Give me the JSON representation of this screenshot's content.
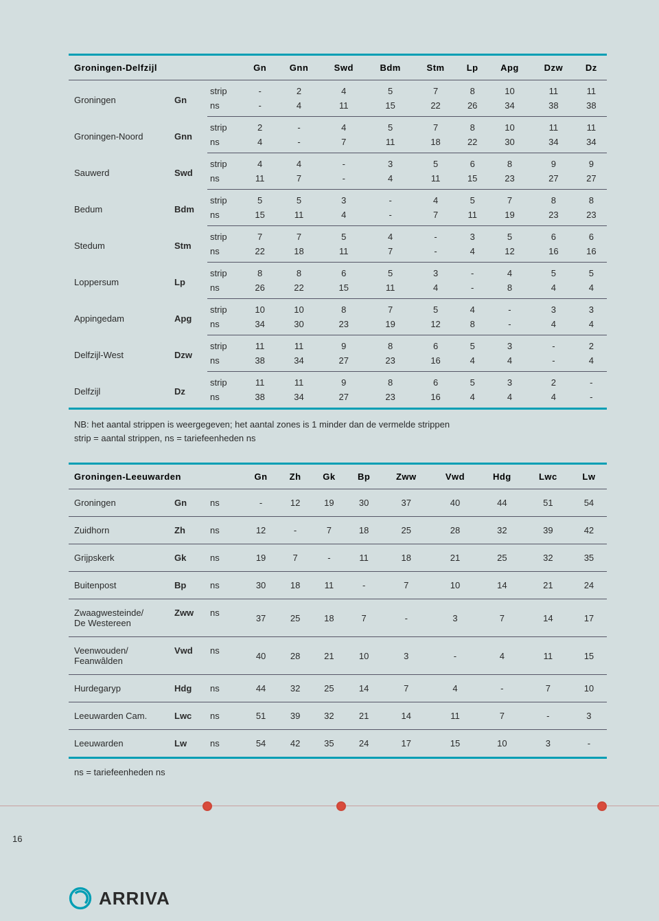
{
  "colors": {
    "page_bg": "#d3dedf",
    "accent": "#009eb4",
    "rule": "#556",
    "text": "#2a2a2a",
    "dot": "#d94b3c",
    "dotline": "#c9a0a0"
  },
  "page_number": "16",
  "logo_text": "ARRIVA",
  "note1_line1": "NB: het aantal strippen is weergegeven; het aantal zones is 1 minder dan de vermelde strippen",
  "note1_line2": "strip = aantal strippen, ns = tariefeenheden ns",
  "note2": "ns = tariefeenheden ns",
  "unit_labels": {
    "strip": "strip",
    "ns": "ns"
  },
  "table1": {
    "title": "Groningen-Delfzijl",
    "cols": [
      "Gn",
      "Gnn",
      "Swd",
      "Bdm",
      "Stm",
      "Lp",
      "Apg",
      "Dzw",
      "Dz"
    ],
    "rows": [
      {
        "station": "Groningen",
        "code": "Gn",
        "strip": [
          "-",
          "2",
          "4",
          "5",
          "7",
          "8",
          "10",
          "11",
          "11"
        ],
        "ns": [
          "-",
          "4",
          "11",
          "15",
          "22",
          "26",
          "34",
          "38",
          "38"
        ]
      },
      {
        "station": "Groningen-Noord",
        "code": "Gnn",
        "strip": [
          "2",
          "-",
          "4",
          "5",
          "7",
          "8",
          "10",
          "11",
          "11"
        ],
        "ns": [
          "4",
          "-",
          "7",
          "11",
          "18",
          "22",
          "30",
          "34",
          "34"
        ]
      },
      {
        "station": "Sauwerd",
        "code": "Swd",
        "strip": [
          "4",
          "4",
          "-",
          "3",
          "5",
          "6",
          "8",
          "9",
          "9"
        ],
        "ns": [
          "11",
          "7",
          "-",
          "4",
          "11",
          "15",
          "23",
          "27",
          "27"
        ]
      },
      {
        "station": "Bedum",
        "code": "Bdm",
        "strip": [
          "5",
          "5",
          "3",
          "-",
          "4",
          "5",
          "7",
          "8",
          "8"
        ],
        "ns": [
          "15",
          "11",
          "4",
          "-",
          "7",
          "11",
          "19",
          "23",
          "23"
        ]
      },
      {
        "station": "Stedum",
        "code": "Stm",
        "strip": [
          "7",
          "7",
          "5",
          "4",
          "-",
          "3",
          "5",
          "6",
          "6"
        ],
        "ns": [
          "22",
          "18",
          "11",
          "7",
          "-",
          "4",
          "12",
          "16",
          "16"
        ]
      },
      {
        "station": "Loppersum",
        "code": "Lp",
        "strip": [
          "8",
          "8",
          "6",
          "5",
          "3",
          "-",
          "4",
          "5",
          "5"
        ],
        "ns": [
          "26",
          "22",
          "15",
          "11",
          "4",
          "-",
          "8",
          "4",
          "4"
        ]
      },
      {
        "station": "Appingedam",
        "code": "Apg",
        "strip": [
          "10",
          "10",
          "8",
          "7",
          "5",
          "4",
          "-",
          "3",
          "3"
        ],
        "ns": [
          "34",
          "30",
          "23",
          "19",
          "12",
          "8",
          "-",
          "4",
          "4"
        ]
      },
      {
        "station": "Delfzijl-West",
        "code": "Dzw",
        "strip": [
          "11",
          "11",
          "9",
          "8",
          "6",
          "5",
          "3",
          "-",
          "2"
        ],
        "ns": [
          "38",
          "34",
          "27",
          "23",
          "16",
          "4",
          "4",
          "-",
          "4"
        ]
      },
      {
        "station": "Delfzijl",
        "code": "Dz",
        "strip": [
          "11",
          "11",
          "9",
          "8",
          "6",
          "5",
          "3",
          "2",
          "-"
        ],
        "ns": [
          "38",
          "34",
          "27",
          "23",
          "16",
          "4",
          "4",
          "4",
          "-"
        ]
      }
    ]
  },
  "table2": {
    "title": "Groningen-Leeuwarden",
    "unit": "ns",
    "cols": [
      "Gn",
      "Zh",
      "Gk",
      "Bp",
      "Zww",
      "Vwd",
      "Hdg",
      "Lwc",
      "Lw"
    ],
    "rows": [
      {
        "station": "Groningen",
        "code": "Gn",
        "vals": [
          "-",
          "12",
          "19",
          "30",
          "37",
          "40",
          "44",
          "51",
          "54"
        ]
      },
      {
        "station": "Zuidhorn",
        "code": "Zh",
        "vals": [
          "12",
          "-",
          "7",
          "18",
          "25",
          "28",
          "32",
          "39",
          "42"
        ]
      },
      {
        "station": "Grijpskerk",
        "code": "Gk",
        "vals": [
          "19",
          "7",
          "-",
          "11",
          "18",
          "21",
          "25",
          "32",
          "35"
        ]
      },
      {
        "station": "Buitenpost",
        "code": "Bp",
        "vals": [
          "30",
          "18",
          "11",
          "-",
          "7",
          "10",
          "14",
          "21",
          "24"
        ]
      },
      {
        "station": "Zwaagwesteinde/\nDe Westereen",
        "code": "Zww",
        "vals": [
          "37",
          "25",
          "18",
          "7",
          "-",
          "3",
          "7",
          "14",
          "17"
        ]
      },
      {
        "station": "Veenwouden/\nFeanwâlden",
        "code": "Vwd",
        "vals": [
          "40",
          "28",
          "21",
          "10",
          "3",
          "-",
          "4",
          "11",
          "15"
        ]
      },
      {
        "station": "Hurdegaryp",
        "code": "Hdg",
        "vals": [
          "44",
          "32",
          "25",
          "14",
          "7",
          "4",
          "-",
          "7",
          "10"
        ]
      },
      {
        "station": "Leeuwarden Cam.",
        "code": "Lwc",
        "vals": [
          "51",
          "39",
          "32",
          "21",
          "14",
          "11",
          "7",
          "-",
          "3"
        ]
      },
      {
        "station": "Leeuwarden",
        "code": "Lw",
        "vals": [
          "54",
          "42",
          "35",
          "24",
          "17",
          "15",
          "10",
          "3",
          "-"
        ]
      }
    ]
  }
}
